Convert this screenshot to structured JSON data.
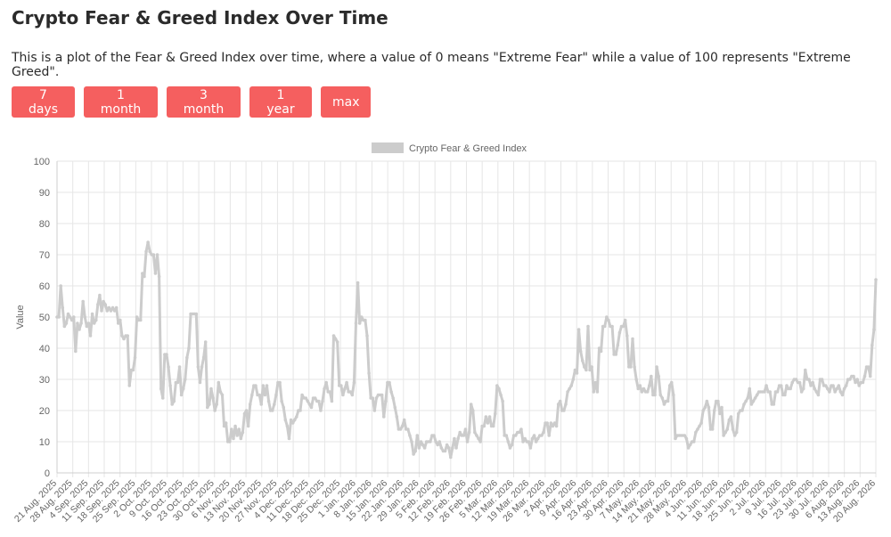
{
  "page": {
    "title": "Crypto Fear & Greed Index Over Time",
    "description": "This is a plot of the Fear & Greed Index over time, where a value of 0 means \"Extreme Fear\" while a value of 100 represents \"Extreme Greed\"."
  },
  "range_buttons": [
    {
      "label": "7 days"
    },
    {
      "label": "1 month"
    },
    {
      "label": "3 month"
    },
    {
      "label": "1 year"
    },
    {
      "label": "max"
    }
  ],
  "colors": {
    "button": "#f55f5f",
    "series": "#cccccc",
    "grid": "#e6e6e6",
    "axis_text": "#666666"
  },
  "chart_data": {
    "type": "line",
    "xlabel": "",
    "ylabel": "Value",
    "ylim": [
      0,
      100
    ],
    "yticks": [
      0,
      10,
      20,
      30,
      40,
      50,
      60,
      70,
      80,
      90,
      100
    ],
    "grid": true,
    "legend_position": "top-center",
    "x_start": "2025-08-21",
    "x_end": "2026-08-21",
    "x_tick_labels": [
      "21 Aug. 2025",
      "28 Aug. 2025",
      "4 Sep. 2025",
      "11 Sep. 2025",
      "18 Sep. 2025",
      "25 Sep. 2025",
      "2 Oct. 2025",
      "9 Oct. 2025",
      "16 Oct. 2025",
      "23 Oct. 2025",
      "30 Oct. 2025",
      "6 Nov. 2025",
      "13 Nov. 2025",
      "20 Nov. 2025",
      "27 Nov. 2025",
      "4 Dec. 2025",
      "11 Dec. 2025",
      "18 Dec. 2025",
      "25 Dec. 2025",
      "1 Jan. 2026",
      "8 Jan. 2026",
      "15 Jan. 2026",
      "22 Jan. 2026",
      "29 Jan. 2026",
      "5 Feb. 2026",
      "12 Feb. 2026",
      "19 Feb. 2026",
      "26 Feb. 2026",
      "5 Mar. 2026",
      "12 Mar. 2026",
      "19 Mar. 2026",
      "26 Mar. 2026",
      "2 Apr. 2026",
      "9 Apr. 2026",
      "16 Apr. 2026",
      "23 Apr. 2026",
      "30 Apr. 2026",
      "7 May. 2026",
      "14 May. 2026",
      "21 May. 2026",
      "28 May. 2026",
      "4 Jun. 2026",
      "11 Jun. 2026",
      "18 Jun. 2026",
      "25 Jun. 2026",
      "2 Jul. 2026",
      "9 Jul. 2026",
      "16 Jul. 2026",
      "23 Jul. 2026",
      "30 Jul. 2026",
      "6 Aug. 2026",
      "13 Aug. 2026",
      "20 Aug. 2026"
    ],
    "series": [
      {
        "name": "Crypto Fear & Greed Index",
        "values": [
          50,
          50,
          60,
          53,
          47,
          48,
          51,
          50,
          49,
          50,
          39,
          48,
          46,
          48,
          55,
          50,
          47,
          48,
          44,
          51,
          48,
          49,
          54,
          57,
          52,
          55,
          54,
          52,
          53,
          52,
          53,
          52,
          53,
          48,
          49,
          44,
          43,
          44,
          44,
          28,
          33,
          33,
          37,
          50,
          49,
          49,
          64,
          63,
          71,
          74,
          71,
          70,
          70,
          64,
          70,
          63,
          27,
          24,
          38,
          38,
          34,
          28,
          22,
          23,
          29,
          29,
          34,
          25,
          27,
          30,
          37,
          40,
          51,
          51,
          51,
          51,
          34,
          29,
          34,
          37,
          42,
          21,
          22,
          27,
          24,
          20,
          22,
          29,
          26,
          25,
          15,
          16,
          10,
          10,
          14,
          11,
          15,
          12,
          14,
          11,
          13,
          19,
          20,
          15,
          22,
          25,
          28,
          28,
          25,
          25,
          22,
          28,
          25,
          28,
          23,
          20,
          20,
          22,
          25,
          29,
          29,
          23,
          21,
          17,
          15,
          11,
          17,
          16,
          17,
          18,
          20,
          20,
          25,
          24,
          24,
          23,
          22,
          21,
          24,
          24,
          23,
          23,
          20,
          23,
          27,
          29,
          26,
          26,
          23,
          44,
          43,
          42,
          28,
          28,
          25,
          27,
          29,
          26,
          26,
          25,
          29,
          48,
          61,
          48,
          50,
          49,
          49,
          44,
          32,
          24,
          24,
          20,
          24,
          25,
          25,
          25,
          18,
          23,
          29,
          29,
          26,
          24,
          21,
          18,
          14,
          14,
          15,
          17,
          14,
          14,
          12,
          10,
          6,
          7,
          12,
          8,
          10,
          9,
          8,
          10,
          10,
          10,
          12,
          12,
          10,
          9,
          10,
          8,
          7,
          7,
          9,
          8,
          5,
          8,
          11,
          8,
          11,
          13,
          12,
          12,
          14,
          10,
          13,
          22,
          20,
          13,
          12,
          11,
          10,
          15,
          15,
          18,
          16,
          18,
          15,
          15,
          19,
          28,
          27,
          25,
          23,
          12,
          12,
          10,
          8,
          9,
          12,
          12,
          13,
          13,
          14,
          10,
          11,
          10,
          10,
          8,
          11,
          12,
          10,
          11,
          12,
          12,
          13,
          16,
          16,
          12,
          16,
          15,
          16,
          15,
          22,
          23,
          20,
          20,
          22,
          26,
          27,
          28,
          30,
          33,
          32,
          46,
          39,
          36,
          34,
          33,
          47,
          33,
          34,
          26,
          29,
          26,
          40,
          39,
          47,
          47,
          50,
          49,
          47,
          47,
          38,
          38,
          41,
          45,
          47,
          47,
          49,
          44,
          34,
          34,
          43,
          34,
          30,
          27,
          28,
          26,
          27,
          26,
          26,
          28,
          31,
          25,
          25,
          34,
          31,
          25,
          24,
          22,
          23,
          23,
          28,
          29,
          25,
          11,
          12,
          12,
          12,
          12,
          12,
          11,
          8,
          9,
          10,
          10,
          13,
          14,
          15,
          16,
          20,
          21,
          23,
          21,
          14,
          14,
          20,
          23,
          23,
          19,
          21,
          12,
          13,
          14,
          17,
          18,
          14,
          12,
          13,
          19,
          20,
          20,
          22,
          23,
          24,
          27,
          22,
          23,
          24,
          25,
          26,
          26,
          26,
          26,
          28,
          26,
          26,
          22,
          22,
          26,
          26,
          28,
          28,
          25,
          25,
          28,
          27,
          27,
          29,
          30,
          30,
          29,
          29,
          26,
          27,
          33,
          30,
          30,
          28,
          29,
          27,
          26,
          25,
          30,
          30,
          28,
          28,
          27,
          26,
          28,
          28,
          26,
          27,
          28,
          26,
          25,
          27,
          28,
          30,
          30,
          31,
          31,
          29,
          30,
          28,
          29,
          29,
          31,
          34,
          34,
          31,
          41,
          46,
          62
        ]
      }
    ]
  }
}
